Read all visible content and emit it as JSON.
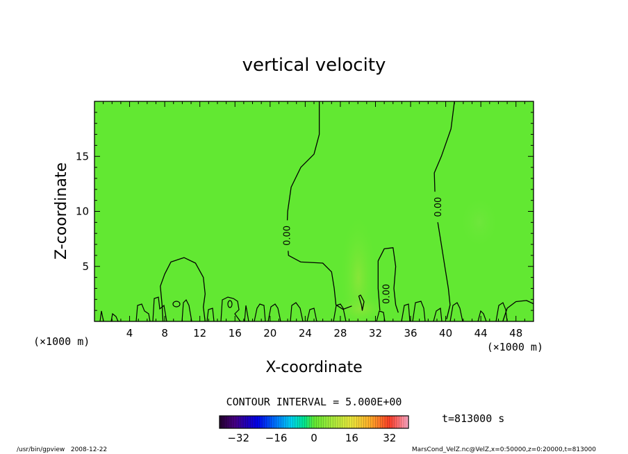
{
  "chart_data": {
    "type": "heatmap",
    "title": "vertical velocity",
    "xlabel": "X-coordinate",
    "ylabel": "Z-coordinate",
    "x_unit_label": "(×1000 m)",
    "y_unit_label": "(×1000 m)",
    "xlim": [
      0,
      50
    ],
    "ylim": [
      0,
      20
    ],
    "x_ticks": [
      4,
      8,
      12,
      16,
      20,
      24,
      28,
      32,
      36,
      40,
      44,
      48
    ],
    "y_ticks": [
      5,
      10,
      15
    ],
    "contour_interval": "CONTOUR INTERVAL = 5.000E+00",
    "contour_labels": [
      "0.00",
      "0.00",
      "0.00"
    ],
    "contours": [
      [
        [
          25.6,
          20
        ],
        [
          25.6,
          17
        ],
        [
          25.0,
          15.2
        ],
        [
          23.5,
          14.0
        ],
        [
          22.4,
          12.2
        ],
        [
          22.0,
          10.0
        ],
        [
          21.9,
          8.0
        ],
        [
          22.1,
          6.0
        ],
        [
          23.5,
          5.4
        ],
        [
          26.0,
          5.3
        ],
        [
          27.0,
          4.5
        ],
        [
          27.3,
          3.0
        ],
        [
          27.5,
          1.5
        ],
        [
          28.3,
          1.1
        ],
        [
          29.3,
          1.4
        ]
      ],
      [
        [
          41.0,
          20
        ],
        [
          40.6,
          17.5
        ],
        [
          39.5,
          15.0
        ],
        [
          38.7,
          13.5
        ],
        [
          38.8,
          11.0
        ],
        [
          39.1,
          9.0
        ],
        [
          39.5,
          7.0
        ],
        [
          39.9,
          5.0
        ],
        [
          40.3,
          3.0
        ],
        [
          40.5,
          1.5
        ],
        [
          40.1,
          0.2
        ]
      ],
      [
        [
          32.5,
          1.0
        ],
        [
          32.3,
          3.0
        ],
        [
          32.3,
          5.5
        ],
        [
          33.0,
          6.6
        ],
        [
          34.0,
          6.7
        ],
        [
          34.3,
          5.0
        ],
        [
          34.1,
          3.0
        ],
        [
          34.3,
          1.5
        ],
        [
          34.6,
          0.8
        ]
      ],
      [
        [
          7.8,
          0
        ],
        [
          7.7,
          1.5
        ],
        [
          7.5,
          3.2
        ],
        [
          8.0,
          4.3
        ],
        [
          8.7,
          5.4
        ],
        [
          10.2,
          5.8
        ],
        [
          11.5,
          5.3
        ],
        [
          12.4,
          4.0
        ],
        [
          12.6,
          2.5
        ],
        [
          12.4,
          1.3
        ],
        [
          12.6,
          0
        ]
      ],
      [
        [
          30.4,
          1.5
        ],
        [
          30.1,
          2.3
        ],
        [
          30.3,
          2.4
        ],
        [
          30.7,
          1.8
        ],
        [
          30.5,
          1.0
        ],
        [
          30.4,
          1.5
        ]
      ],
      [
        [
          46.5,
          0
        ],
        [
          47.0,
          1.2
        ],
        [
          48.0,
          1.8
        ],
        [
          49.2,
          1.9
        ],
        [
          50,
          1.6
        ]
      ]
    ],
    "colorbar": {
      "range": [
        -40,
        40
      ],
      "ticks": [
        -32,
        -16,
        0,
        16,
        32
      ]
    },
    "time_label": "t=813000 s",
    "footer_left": "/usr/bin/gpview   2008-12-22",
    "footer_right": "MarsCond_VelZ.nc@VelZ,x=0:50000,z=0:20000,t=813000"
  }
}
